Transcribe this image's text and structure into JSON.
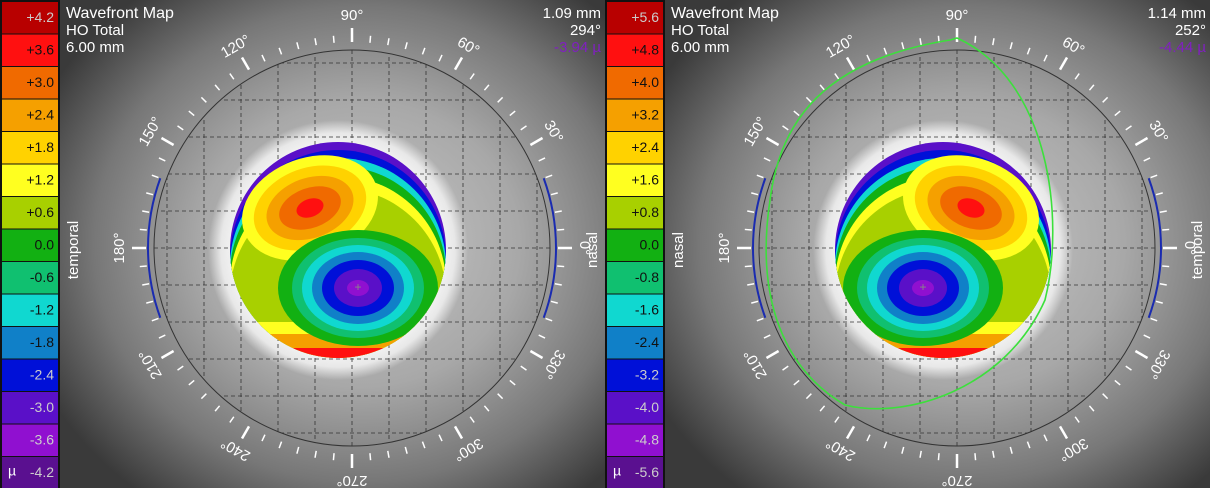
{
  "panels": [
    {
      "title": "Wavefront Map",
      "subtitle": "HO Total",
      "diameter": "6.00 mm",
      "readout": [
        "1.09 mm",
        "294°",
        "-3.94 µ"
      ],
      "legend": [
        {
          "label": "+4.2",
          "color": "#b80000"
        },
        {
          "label": "+3.6",
          "color": "#ff1010"
        },
        {
          "label": "+3.0",
          "color": "#f06a00"
        },
        {
          "label": "+2.4",
          "color": "#f5a000"
        },
        {
          "label": "+1.8",
          "color": "#ffd200"
        },
        {
          "label": "+1.2",
          "color": "#ffff20"
        },
        {
          "label": "+0.6",
          "color": "#a8d000"
        },
        {
          "label": "0.0",
          "color": "#12b012"
        },
        {
          "label": "-0.6",
          "color": "#10c070"
        },
        {
          "label": "-1.2",
          "color": "#10d8d0"
        },
        {
          "label": "-1.8",
          "color": "#1080c8"
        },
        {
          "label": "-2.4",
          "color": "#0010d8"
        },
        {
          "label": "-3.0",
          "color": "#5a10c8"
        },
        {
          "label": "-3.6",
          "color": "#9010d0"
        },
        {
          "label": "-4.2",
          "color": "#5a1090"
        }
      ],
      "unit": "µ",
      "angles": [
        "0°",
        "30°",
        "60°",
        "90°",
        "120°",
        "150°",
        "180°",
        "210°",
        "240°",
        "270°",
        "300°",
        "330°"
      ],
      "left_side": "temporal",
      "right_side": "nasal"
    },
    {
      "title": "Wavefront Map",
      "subtitle": "HO Total",
      "diameter": "6.00 mm",
      "readout": [
        "1.14 mm",
        "252°",
        "-4.44 µ"
      ],
      "legend": [
        {
          "label": "+5.6",
          "color": "#b80000"
        },
        {
          "label": "+4.8",
          "color": "#ff1010"
        },
        {
          "label": "+4.0",
          "color": "#f06a00"
        },
        {
          "label": "+3.2",
          "color": "#f5a000"
        },
        {
          "label": "+2.4",
          "color": "#ffd200"
        },
        {
          "label": "+1.6",
          "color": "#ffff20"
        },
        {
          "label": "+0.8",
          "color": "#a8d000"
        },
        {
          "label": "0.0",
          "color": "#12b012"
        },
        {
          "label": "-0.8",
          "color": "#10c070"
        },
        {
          "label": "-1.6",
          "color": "#10d8d0"
        },
        {
          "label": "-2.4",
          "color": "#1080c8"
        },
        {
          "label": "-3.2",
          "color": "#0010d8"
        },
        {
          "label": "-4.0",
          "color": "#5a10c8"
        },
        {
          "label": "-4.8",
          "color": "#9010d0"
        },
        {
          "label": "-5.6",
          "color": "#5a1090"
        }
      ],
      "unit": "µ",
      "angles": [
        "0°",
        "30°",
        "60°",
        "90°",
        "120°",
        "150°",
        "180°",
        "210°",
        "240°",
        "270°",
        "300°",
        "330°"
      ],
      "left_side": "nasal",
      "right_side": "temporal"
    }
  ]
}
